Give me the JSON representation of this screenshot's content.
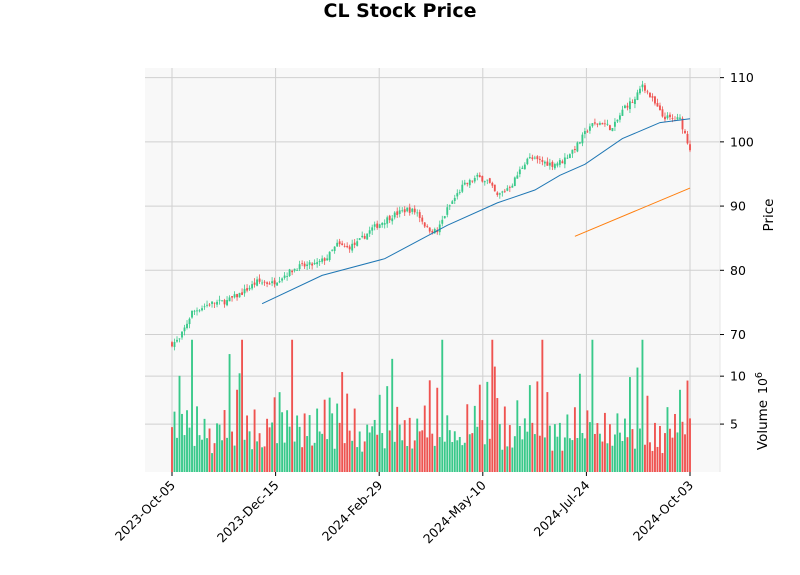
{
  "chart_data": {
    "type": "candlestick",
    "title": "CL Stock Price",
    "ylabel_price": "Price",
    "ylabel_volume": "Volume",
    "volume_exponent_label": "10",
    "volume_exponent_power": "6",
    "x_tick_labels": [
      "2023-Oct-05",
      "2023-Dec-15",
      "2024-Feb-29",
      "2024-May-10",
      "2024-Jul-24",
      "2024-Oct-03"
    ],
    "price_ticks": [
      70,
      80,
      90,
      100,
      110
    ],
    "volume_ticks": [
      5,
      10
    ],
    "price_ylim": [
      66.5,
      111.5
    ],
    "volume_ylim": [
      0,
      12
    ],
    "price_path": [
      [
        0,
        68.6
      ],
      [
        3,
        69.2
      ],
      [
        8,
        73.5
      ],
      [
        15,
        74.8
      ],
      [
        22,
        75.2
      ],
      [
        28,
        76.5
      ],
      [
        34,
        78.2
      ],
      [
        40,
        78.0
      ],
      [
        44,
        79.0
      ],
      [
        50,
        80.5
      ],
      [
        58,
        81.0
      ],
      [
        62,
        82.0
      ],
      [
        66,
        84.0
      ],
      [
        70,
        83.5
      ],
      [
        74,
        84.2
      ],
      [
        80,
        86.5
      ],
      [
        88,
        88.5
      ],
      [
        94,
        89.5
      ],
      [
        98,
        89.0
      ],
      [
        102,
        86.5
      ],
      [
        106,
        86.0
      ],
      [
        110,
        89.5
      ],
      [
        116,
        93.0
      ],
      [
        122,
        94.5
      ],
      [
        126,
        94.0
      ],
      [
        130,
        91.5
      ],
      [
        136,
        93.5
      ],
      [
        142,
        97.5
      ],
      [
        147,
        97.0
      ],
      [
        152,
        96.5
      ],
      [
        156,
        97.0
      ],
      [
        162,
        99.5
      ],
      [
        167,
        102.5
      ],
      [
        172,
        103.0
      ],
      [
        176,
        102.0
      ],
      [
        181,
        105.5
      ],
      [
        185,
        106.5
      ],
      [
        188,
        109.0
      ],
      [
        192,
        106.5
      ],
      [
        196,
        104.0
      ],
      [
        200,
        103.5
      ],
      [
        203,
        103.5
      ],
      [
        207,
        99.0
      ]
    ],
    "series": [
      {
        "name": "",
        "values": [
          [
            36,
            74.8
          ],
          [
            60,
            79.2
          ],
          [
            85,
            81.8
          ],
          [
            110,
            87.0
          ],
          [
            130,
            90.5
          ],
          [
            145,
            92.5
          ],
          [
            155,
            94.8
          ],
          [
            165,
            96.5
          ],
          [
            180,
            100.5
          ],
          [
            195,
            103.0
          ],
          [
            207,
            103.6
          ]
        ]
      },
      {
        "name": "",
        "values": [
          [
            161,
            85.3
          ],
          [
            207,
            92.8
          ]
        ]
      }
    ],
    "volume_pattern": [
      4.2,
      6.5,
      3.8,
      10.2,
      5.0,
      3.2,
      7.8,
      4.5,
      13.5,
      3.5,
      6.8,
      4.0,
      2.8,
      5.5,
      3.2,
      4.8,
      2.5,
      3.5,
      6.2,
      4.1
    ]
  },
  "colors": {
    "up": "#26a69a",
    "up_light": "#38c98a",
    "down": "#ef5350",
    "ma_long": "#1f77b4",
    "ma_short": "#ff7f0e",
    "grid": "#d0d0d0",
    "plot_bg": "#f8f8f8"
  }
}
